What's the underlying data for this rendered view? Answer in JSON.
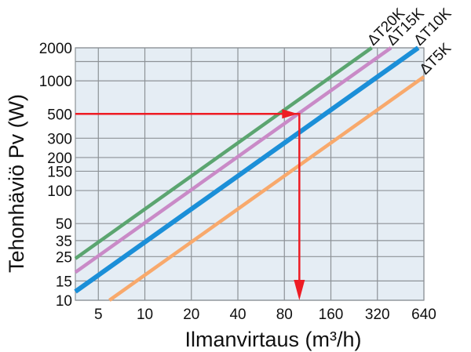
{
  "chart_data": {
    "type": "line",
    "title": "",
    "xlabel": "Ilmanvirtaus (m³/h)",
    "ylabel": "Tehonhäviö Pv (W)",
    "x_scale": "log",
    "y_scale": "log",
    "xlim": [
      3.55,
      640
    ],
    "ylim": [
      10,
      2000
    ],
    "x_ticks": [
      5,
      10,
      20,
      40,
      80,
      160,
      320,
      640
    ],
    "x_tick_labels": [
      "5",
      "10",
      "20",
      "40",
      "80",
      "160",
      "320",
      "640"
    ],
    "y_ticks": [
      10,
      15,
      25,
      35,
      50,
      100,
      150,
      200,
      300,
      500,
      1000,
      2000
    ],
    "y_tick_labels": [
      "10",
      "15",
      "25",
      "35",
      "50",
      "100",
      "150",
      "200",
      "300",
      "500",
      "1000",
      "2000"
    ],
    "y_extra_gridlines": [
      1500
    ],
    "grid": true,
    "plot_background": "#e5edf4",
    "series": [
      {
        "name": "ΔT20K",
        "color": "#5ba570",
        "x": [
          3.55,
          294
        ],
        "y": [
          24,
          2000
        ]
      },
      {
        "name": "ΔT15K",
        "color": "#c98ac7",
        "x": [
          3.55,
          392
        ],
        "y": [
          18,
          2000
        ]
      },
      {
        "name": "ΔT10K",
        "color": "#1b8fd8",
        "x": [
          3.55,
          588
        ],
        "y": [
          12,
          2000
        ]
      },
      {
        "name": "ΔT5K",
        "color": "#f8a96c",
        "x": [
          5.9,
          640
        ],
        "y": [
          10,
          1088
        ]
      }
    ],
    "annotation": {
      "type": "reading-arrow",
      "color": "#ee1c24",
      "from_y": 500,
      "at_x": 100,
      "to_y": 10
    }
  }
}
